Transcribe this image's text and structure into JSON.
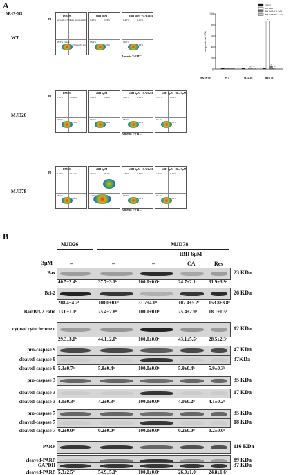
{
  "panelA": {
    "label": "A",
    "cell_line": "SK-N-SH",
    "rows": [
      {
        "label": "WT",
        "axis_y": "PI",
        "axis_x": "Annexin V-FITC",
        "plots": [
          {
            "title": "DMSO",
            "ul": "necrosis 0.55%",
            "ur": "late apoptosis 0.11%",
            "ll": "98.3% viable",
            "lr": "1.05% early apoptosis"
          },
          {
            "title": "tBH 6μM",
            "ul": "0.46%",
            "ur": "0.03%",
            "ll": "98.6%",
            "lr": "0.85%"
          },
          {
            "title": "tBH 6μM +CA 3μM",
            "ul": "0.40%",
            "ur": "0.10%",
            "ll": "99.0%",
            "lr": "0.49%"
          }
        ]
      },
      {
        "label": "MJD26",
        "axis_y": "PI",
        "axis_x": "Annexin V-FITC",
        "plots": [
          {
            "title": "DMSO",
            "ul": "0.78%",
            "ur": "0.06%",
            "ll": "97.9%",
            "lr": "1.22%"
          },
          {
            "title": "tBH 6μM",
            "ul": "1.22%",
            "ur": "0.06%",
            "ll": "97.1%",
            "lr": "1.58%"
          },
          {
            "title": "tBH 6μM +CA 3μM",
            "ul": "1.02%",
            "ur": "0.11%",
            "ll": "98.5%",
            "lr": "0.43%"
          },
          {
            "title": "tBH 6μM +Res 3μM",
            "ul": "1.53%",
            "ur": "0.03%",
            "ll": "97.1%",
            "lr": "1.33%"
          }
        ]
      },
      {
        "label": "MJD78",
        "axis_y": "PI",
        "axis_x": "Annexin V-FITC",
        "plots": [
          {
            "title": "DMSO",
            "ul": "0.19%",
            "ur": "0.51%",
            "ll": "98.5%",
            "lr": "1.84%"
          },
          {
            "title": "tBH 6μM",
            "ul": "13.5%",
            "ur": "73.4%",
            "ll": "2.00%",
            "lr": "8.60%"
          },
          {
            "title": "tBH 6μM +CA 3μM",
            "ul": "2.34%",
            "ur": "3.65%",
            "ll": "96.7%",
            "lr": "0.81%"
          },
          {
            "title": "tBH 6μM +Res 3μM",
            "ul": "1.72%",
            "ur": "0.10%",
            "ll": "96.1%",
            "lr": "1.19%"
          }
        ]
      }
    ]
  },
  "chart_data": {
    "type": "bar",
    "ylabel": "apoptosis rate (%)",
    "ylim": [
      0,
      100
    ],
    "yticks": [
      "0",
      "20",
      "40",
      "60",
      "80",
      "100"
    ],
    "row_label": "SK-N-SH",
    "categories": [
      "WT",
      "MJD26",
      "MJD78"
    ],
    "series": [
      {
        "name": "DMSO",
        "color": "#111111",
        "values": [
          1.2,
          1.3,
          1.4
        ],
        "letters": [
          "",
          "",
          ""
        ]
      },
      {
        "name": "tBH 6uM",
        "color": "#ffffff",
        "values": [
          0.9,
          1.6,
          86.5
        ],
        "letters": [
          "",
          "b",
          "a"
        ]
      },
      {
        "name": "tBH 6uM+CA 3uM",
        "color": "#777777",
        "values": [
          0.6,
          0.5,
          4.5
        ],
        "letters": [
          "",
          "b",
          "b"
        ]
      },
      {
        "name": "tBH 6uM+Res 3uM",
        "color": "#cccccc",
        "values": [
          0.8,
          1.4,
          1.3
        ],
        "letters": [
          "",
          "b",
          "b"
        ]
      }
    ]
  },
  "panelB": {
    "label": "B",
    "header_mjd26": "MJD26",
    "header_mjd78": "MJD78",
    "header_tbh": "tBH 6μM",
    "treat_label": "3μM",
    "treat_cols": [
      "–",
      "–",
      "–",
      "CA",
      "Res"
    ],
    "rows": [
      {
        "label": "Bax",
        "kda": "23 KDa"
      },
      {
        "label": "",
        "values": [
          "40.5±2.4ᵇ",
          "37.7±3.1ᵇ",
          "100.0±0.0ᵃ",
          "24.7±2.1ᶜ",
          "31.9±3.9ᶜ"
        ]
      },
      {
        "label": "Bcl-2",
        "kda": "26 KDa"
      },
      {
        "label": "",
        "values": [
          "208.4±4.2ᵃ",
          "100.0±0.0ᶜ",
          "31.7±4.0ᵈ",
          "102.4±5.2ᶜ",
          "153.8±3.8ᵇ"
        ]
      },
      {
        "label": "Bax/Bcl-2 ratio",
        "values": [
          "13.0±1.1ᶜ",
          "25.4±2.8ᵇ",
          "100.0±0.0ᵃ",
          "25.4±2.9ᵇ",
          "18.1±1.5ᶜ"
        ]
      },
      {
        "label": "cytosol cytochrome c",
        "kda": "12 KDa"
      },
      {
        "label": "",
        "values": [
          "29.3±3.8ᵇ",
          "44.1±2.0ᵇ",
          "100.0±0.0ᵃ",
          "43.1±5.5ᵇ",
          "28.5±2.3ᶜ"
        ]
      },
      {
        "label": "pro-caspase 9",
        "kda": "47 KDa"
      },
      {
        "label": "cleaved-caspase 9",
        "kda": "37KDa"
      },
      {
        "label": "cleaved-caspase 9",
        "values": [
          "5.3±0.7ᵇ",
          "5.8±0.4ᵇ",
          "100.0±0.0ᵃ",
          "5.9±0.4ᵇ",
          "5.9±0.3ᵇ"
        ]
      },
      {
        "label": "pro-caspase 3",
        "kda": "35 KDa"
      },
      {
        "label": "cleaved-caspase 3",
        "kda": "17 KDa"
      },
      {
        "label": "cleaved-caspase 3",
        "values": [
          "4.0±0.3ᵇ",
          "4.2±0.3ᵇ",
          "100.0±0.0ᵃ",
          "4.0±0.2ᵇ",
          "4.1±0.2ᵇ"
        ]
      },
      {
        "label": "pro-caspase 7",
        "kda": "35 KDa"
      },
      {
        "label": "cleaved-caspase 7",
        "kda": "18 KDa"
      },
      {
        "label": "cleaved-caspase 7",
        "values": [
          "0.2±0.0ᵇ",
          "0.2±0.0ᵇ",
          "100.0±0.0ᵃ",
          "0.2±0.0ᵇ",
          "0.2±0.0ᵇ"
        ]
      },
      {
        "label": "PARP",
        "kda": "116 KDa"
      },
      {
        "label": "cleaved-PARP",
        "kda": "89 KDa"
      },
      {
        "label": "cleaved-PARP",
        "values": [
          "5.3±2.5ᵈ",
          "54.9±5.1ᵇ",
          "100.0±0.0ᵃ",
          "26.9±1.0ᶜ",
          "24.8±1.6ᶜ"
        ]
      },
      {
        "label": "GAPDH",
        "kda": "37 KDa"
      }
    ]
  }
}
